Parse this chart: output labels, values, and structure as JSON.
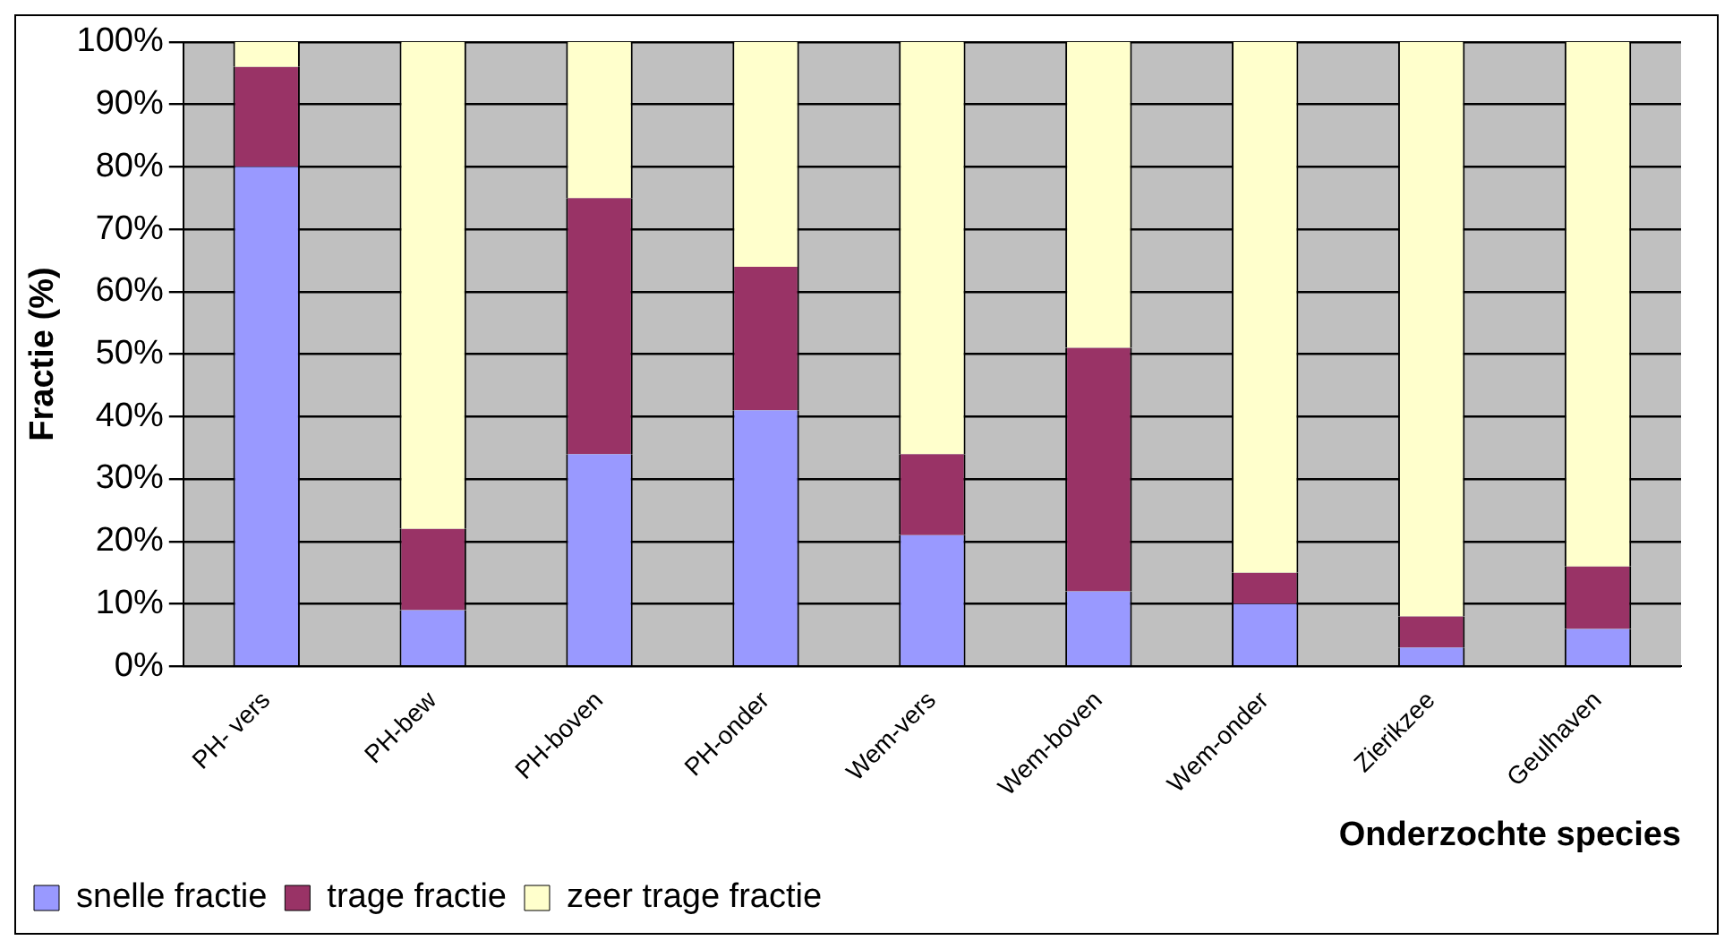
{
  "chart_data": {
    "type": "bar",
    "stacked": true,
    "xlabel": "Onderzochte species",
    "ylabel": "Fractie (%)",
    "categories": [
      "PH- vers",
      "PH-bew",
      "PH-boven",
      "PH-onder",
      "Wem-vers",
      "Wem-boven",
      "Wem-onder",
      "Zierikzee",
      "Geulhaven"
    ],
    "series": [
      {
        "name": "snelle fractie",
        "color": "#9999ff",
        "values": [
          80,
          9,
          34,
          41,
          21,
          12,
          10,
          3,
          6
        ]
      },
      {
        "name": "trage fractie",
        "color": "#993366",
        "values": [
          16,
          13,
          41,
          23,
          13,
          39,
          5,
          5,
          10
        ]
      },
      {
        "name": "zeer trage fractie",
        "color": "#ffffcc",
        "values": [
          4,
          78,
          25,
          36,
          66,
          49,
          85,
          92,
          84
        ]
      }
    ],
    "ylim": [
      0,
      100
    ],
    "yticks": [
      {
        "value": 0,
        "label": "0%"
      },
      {
        "value": 10,
        "label": "10%"
      },
      {
        "value": 20,
        "label": "20%"
      },
      {
        "value": 30,
        "label": "30%"
      },
      {
        "value": 40,
        "label": "40%"
      },
      {
        "value": 50,
        "label": "50%"
      },
      {
        "value": 60,
        "label": "60%"
      },
      {
        "value": 70,
        "label": "70%"
      },
      {
        "value": 80,
        "label": "80%"
      },
      {
        "value": 90,
        "label": "90%"
      },
      {
        "value": 100,
        "label": "100%"
      }
    ],
    "grid": "y",
    "legend": "bottom"
  }
}
